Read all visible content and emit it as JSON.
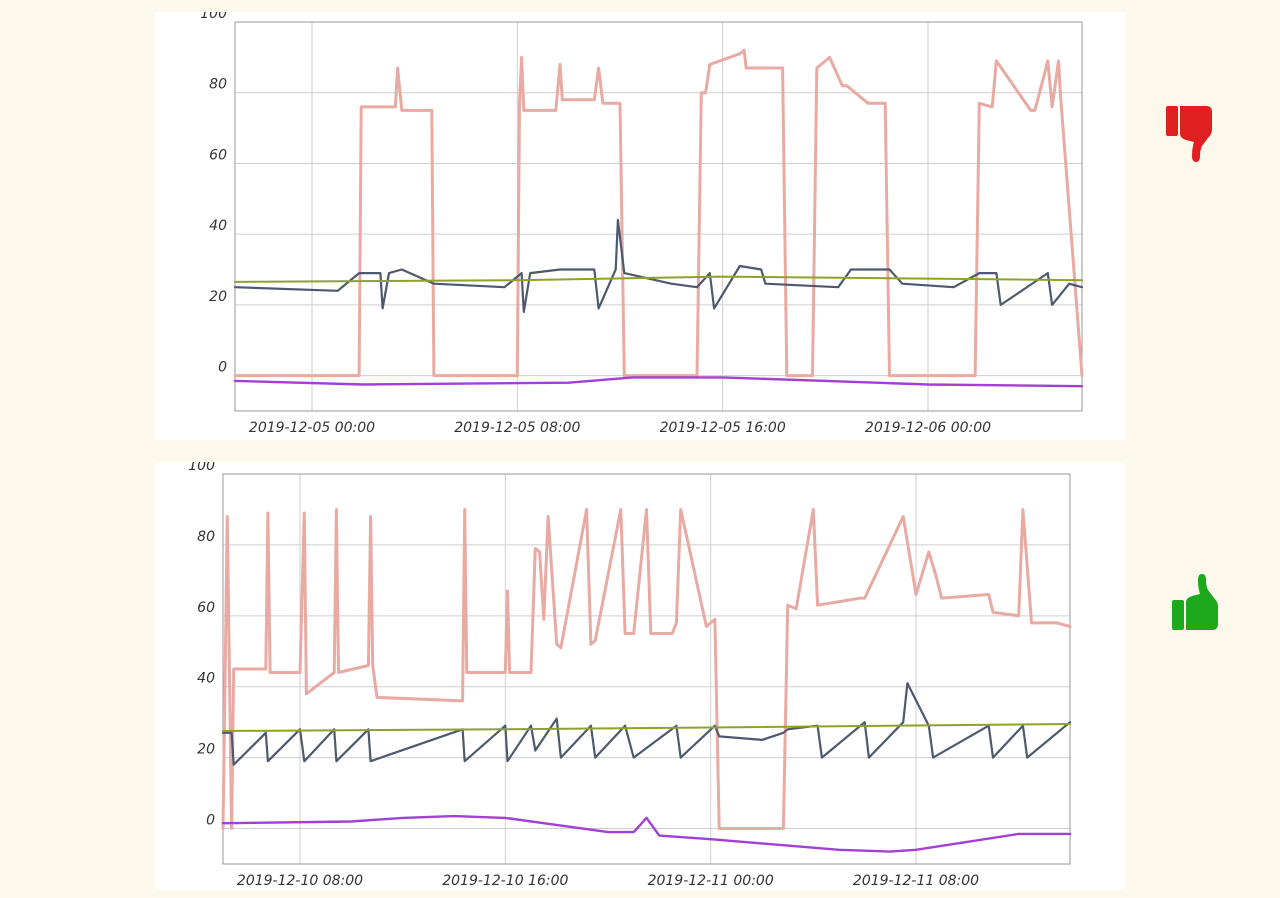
{
  "colors": {
    "grid": "#cfcfcf",
    "axis": "#999999",
    "pink": "#e8aaa3",
    "navy": "#4d596e",
    "olive": "#8ea12a",
    "purple": "#a23fd6",
    "thumb_down": "#e02020",
    "thumb_up": "#1ea81e"
  },
  "icons": {
    "top": "thumb-down-icon",
    "bottom": "thumb-up-icon"
  },
  "chart_data": [
    {
      "type": "line",
      "ylim": [
        -10,
        100
      ],
      "xlim": [
        "2019-12-04 21:00",
        "2019-12-06 06:00"
      ],
      "yticks": [
        0,
        20,
        40,
        60,
        80,
        100
      ],
      "xticks": [
        "2019-12-05 00:00",
        "2019-12-05 08:00",
        "2019-12-05 16:00",
        "2019-12-06 00:00"
      ],
      "grid": true,
      "series": [
        {
          "color": "pink",
          "x": [
            "2019-12-04 21:00",
            "2019-12-05 01:50",
            "2019-12-05 01:55",
            "2019-12-05 02:00",
            "2019-12-05 03:15",
            "2019-12-05 03:20",
            "2019-12-05 03:30",
            "2019-12-05 03:35",
            "2019-12-05 04:40",
            "2019-12-05 04:45",
            "2019-12-05 08:00",
            "2019-12-05 08:05",
            "2019-12-05 08:10",
            "2019-12-05 08:15",
            "2019-12-05 09:30",
            "2019-12-05 09:40",
            "2019-12-05 09:45",
            "2019-12-05 11:00",
            "2019-12-05 11:10",
            "2019-12-05 11:20",
            "2019-12-05 12:00",
            "2019-12-05 12:10",
            "2019-12-05 15:00",
            "2019-12-05 15:10",
            "2019-12-05 15:20",
            "2019-12-05 15:30",
            "2019-12-05 16:40",
            "2019-12-05 16:50",
            "2019-12-05 16:55",
            "2019-12-05 17:30",
            "2019-12-05 18:20",
            "2019-12-05 18:30",
            "2019-12-05 19:30",
            "2019-12-05 19:40",
            "2019-12-05 20:10",
            "2019-12-05 20:40",
            "2019-12-05 20:50",
            "2019-12-05 21:40",
            "2019-12-05 22:20",
            "2019-12-05 22:30",
            "2019-12-06 01:50",
            "2019-12-06 02:00",
            "2019-12-06 02:30",
            "2019-12-06 02:40",
            "2019-12-06 04:00",
            "2019-12-06 04:10",
            "2019-12-06 04:40",
            "2019-12-06 04:50",
            "2019-12-06 05:05",
            "2019-12-06 05:10",
            "2019-12-06 06:00"
          ],
          "values": [
            0,
            0,
            76,
            76,
            76,
            87,
            75,
            75,
            75,
            0,
            0,
            77,
            90,
            75,
            75,
            88,
            78,
            78,
            87,
            77,
            77,
            0,
            0,
            80,
            80,
            88,
            91,
            92,
            87,
            87,
            87,
            0,
            0,
            87,
            90,
            82,
            82,
            77,
            77,
            0,
            0,
            77,
            76,
            89,
            75,
            75,
            89,
            76,
            89,
            79,
            0
          ]
        },
        {
          "color": "navy",
          "x": [
            "2019-12-04 21:00",
            "2019-12-05 01:00",
            "2019-12-05 01:50",
            "2019-12-05 02:40",
            "2019-12-05 02:45",
            "2019-12-05 03:00",
            "2019-12-05 03:30",
            "2019-12-05 04:45",
            "2019-12-05 07:30",
            "2019-12-05 08:10",
            "2019-12-05 08:15",
            "2019-12-05 08:30",
            "2019-12-05 09:40",
            "2019-12-05 11:00",
            "2019-12-05 11:10",
            "2019-12-05 11:50",
            "2019-12-05 11:55",
            "2019-12-05 12:10",
            "2019-12-05 14:00",
            "2019-12-05 15:00",
            "2019-12-05 15:30",
            "2019-12-05 15:40",
            "2019-12-05 16:40",
            "2019-12-05 17:30",
            "2019-12-05 17:40",
            "2019-12-05 20:30",
            "2019-12-05 21:00",
            "2019-12-05 22:30",
            "2019-12-05 23:00",
            "2019-12-06 01:00",
            "2019-12-06 02:00",
            "2019-12-06 02:40",
            "2019-12-06 02:50",
            "2019-12-06 04:40",
            "2019-12-06 04:50",
            "2019-12-06 05:30",
            "2019-12-06 06:00"
          ],
          "values": [
            25,
            24,
            29,
            29,
            19,
            29,
            30,
            26,
            25,
            29,
            18,
            29,
            30,
            30,
            19,
            30,
            44,
            29,
            26,
            25,
            29,
            19,
            31,
            30,
            26,
            25,
            30,
            30,
            26,
            25,
            29,
            29,
            20,
            29,
            20,
            26,
            25
          ]
        },
        {
          "color": "olive",
          "x": [
            "2019-12-04 21:00",
            "2019-12-05 08:00",
            "2019-12-05 16:00",
            "2019-12-06 06:00"
          ],
          "values": [
            26.5,
            27,
            28,
            27
          ]
        },
        {
          "color": "purple",
          "x": [
            "2019-12-04 21:00",
            "2019-12-05 02:00",
            "2019-12-05 10:00",
            "2019-12-05 12:30",
            "2019-12-05 16:00",
            "2019-12-05 22:00",
            "2019-12-06 00:00",
            "2019-12-06 06:00"
          ],
          "values": [
            -1.5,
            -2.5,
            -2,
            -0.5,
            -0.5,
            -2,
            -2.5,
            -3
          ]
        }
      ]
    },
    {
      "type": "line",
      "ylim": [
        -10,
        100
      ],
      "xlim": [
        "2019-12-10 05:00",
        "2019-12-11 14:00"
      ],
      "yticks": [
        0,
        20,
        40,
        60,
        80,
        100
      ],
      "xticks": [
        "2019-12-10 08:00",
        "2019-12-10 16:00",
        "2019-12-11 00:00",
        "2019-12-11 08:00"
      ],
      "grid": true,
      "series": [
        {
          "color": "pink",
          "x": [
            "2019-12-10 05:00",
            "2019-12-10 05:10",
            "2019-12-10 05:20",
            "2019-12-10 05:25",
            "2019-12-10 05:30",
            "2019-12-10 06:40",
            "2019-12-10 06:45",
            "2019-12-10 06:50",
            "2019-12-10 08:00",
            "2019-12-10 08:10",
            "2019-12-10 08:15",
            "2019-12-10 09:20",
            "2019-12-10 09:25",
            "2019-12-10 09:30",
            "2019-12-10 10:40",
            "2019-12-10 10:45",
            "2019-12-10 10:50",
            "2019-12-10 11:00",
            "2019-12-10 14:20",
            "2019-12-10 14:25",
            "2019-12-10 14:30",
            "2019-12-10 16:00",
            "2019-12-10 16:05",
            "2019-12-10 16:10",
            "2019-12-10 17:00",
            "2019-12-10 17:10",
            "2019-12-10 17:20",
            "2019-12-10 17:30",
            "2019-12-10 17:40",
            "2019-12-10 18:00",
            "2019-12-10 18:10",
            "2019-12-10 19:10",
            "2019-12-10 19:20",
            "2019-12-10 19:30",
            "2019-12-10 20:30",
            "2019-12-10 20:40",
            "2019-12-10 21:00",
            "2019-12-10 21:30",
            "2019-12-10 21:40",
            "2019-12-10 22:30",
            "2019-12-10 22:40",
            "2019-12-10 22:50",
            "2019-12-10 23:50",
            "2019-12-11 00:10",
            "2019-12-11 00:20",
            "2019-12-11 02:50",
            "2019-12-11 03:00",
            "2019-12-11 03:20",
            "2019-12-11 04:00",
            "2019-12-11 04:10",
            "2019-12-11 05:50",
            "2019-12-11 06:00",
            "2019-12-11 07:30",
            "2019-12-11 08:00",
            "2019-12-11 08:30",
            "2019-12-11 08:45",
            "2019-12-11 09:00",
            "2019-12-11 10:50",
            "2019-12-11 11:00",
            "2019-12-11 12:00",
            "2019-12-11 12:10",
            "2019-12-11 12:30",
            "2019-12-11 13:30",
            "2019-12-11 14:00"
          ],
          "values": [
            0,
            88,
            0,
            45,
            45,
            45,
            89,
            44,
            44,
            89,
            38,
            44,
            90,
            44,
            46,
            88,
            46,
            37,
            36,
            90,
            44,
            44,
            67,
            44,
            44,
            79,
            78,
            59,
            88,
            52,
            51,
            90,
            52,
            53,
            90,
            55,
            55,
            90,
            55,
            55,
            58,
            90,
            57,
            59,
            0,
            0,
            63,
            62,
            90,
            63,
            65,
            65,
            88,
            66,
            78,
            72,
            65,
            66,
            61,
            60,
            90,
            58,
            58,
            57
          ]
        },
        {
          "color": "navy",
          "x": [
            "2019-12-10 05:00",
            "2019-12-10 05:20",
            "2019-12-10 05:25",
            "2019-12-10 06:40",
            "2019-12-10 06:45",
            "2019-12-10 08:00",
            "2019-12-10 08:10",
            "2019-12-10 09:20",
            "2019-12-10 09:25",
            "2019-12-10 10:40",
            "2019-12-10 10:45",
            "2019-12-10 14:20",
            "2019-12-10 14:25",
            "2019-12-10 16:00",
            "2019-12-10 16:05",
            "2019-12-10 17:00",
            "2019-12-10 17:10",
            "2019-12-10 18:00",
            "2019-12-10 18:10",
            "2019-12-10 19:20",
            "2019-12-10 19:30",
            "2019-12-10 20:40",
            "2019-12-10 21:00",
            "2019-12-10 22:40",
            "2019-12-10 22:50",
            "2019-12-11 00:10",
            "2019-12-11 00:20",
            "2019-12-11 02:00",
            "2019-12-11 02:50",
            "2019-12-11 03:00",
            "2019-12-11 04:10",
            "2019-12-11 04:20",
            "2019-12-11 06:00",
            "2019-12-11 06:10",
            "2019-12-11 07:30",
            "2019-12-11 07:40",
            "2019-12-11 08:30",
            "2019-12-11 08:40",
            "2019-12-11 10:50",
            "2019-12-11 11:00",
            "2019-12-11 12:10",
            "2019-12-11 12:20",
            "2019-12-11 14:00"
          ],
          "values": [
            27,
            27,
            18,
            27,
            19,
            28,
            19,
            28,
            19,
            28,
            19,
            28,
            19,
            29,
            19,
            29,
            22,
            31,
            20,
            29,
            20,
            29,
            20,
            29,
            20,
            29,
            26,
            25,
            27,
            28,
            29,
            20,
            30,
            20,
            30,
            41,
            29,
            20,
            29,
            20,
            29,
            20,
            30
          ]
        },
        {
          "color": "olive",
          "x": [
            "2019-12-10 05:00",
            "2019-12-10 16:00",
            "2019-12-11 00:00",
            "2019-12-11 14:00"
          ],
          "values": [
            27.5,
            28,
            28.5,
            29.5
          ]
        },
        {
          "color": "purple",
          "x": [
            "2019-12-10 05:00",
            "2019-12-10 10:00",
            "2019-12-10 12:00",
            "2019-12-10 14:00",
            "2019-12-10 16:00",
            "2019-12-10 20:00",
            "2019-12-10 21:00",
            "2019-12-10 21:30",
            "2019-12-10 22:00",
            "2019-12-11 00:00",
            "2019-12-11 05:00",
            "2019-12-11 07:00",
            "2019-12-11 08:00",
            "2019-12-11 12:00",
            "2019-12-11 14:00"
          ],
          "values": [
            1.5,
            2,
            3,
            3.5,
            3,
            -1,
            -1,
            3,
            -2,
            -3,
            -6,
            -6.5,
            -6,
            -1.5,
            -1.5
          ]
        }
      ]
    }
  ]
}
